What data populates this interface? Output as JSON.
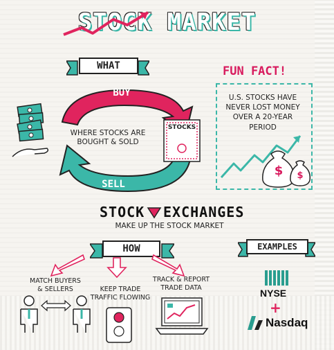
{
  "title": "STOCK MARKET",
  "what": {
    "banner": "WHAT",
    "buy": "BUY",
    "sell": "SELL",
    "description_line1": "WHERE STOCKS ARE",
    "description_line2": "BOUGHT & SOLD",
    "certificate_label": "STOCKS"
  },
  "fun_fact": {
    "title": "FUN FACT!",
    "line1": "U.S. STOCKS HAVE",
    "line2": "NEVER LOST MONEY",
    "line3": "OVER A 20-YEAR",
    "line4": "PERIOD",
    "money_bag_symbol": "$"
  },
  "exchanges": {
    "title_left": "STOCK",
    "title_right": "EXCHANGES",
    "subtitle": "MAKE UP THE STOCK MARKET"
  },
  "how": {
    "banner": "HOW",
    "items": [
      {
        "line1": "MATCH BUYERS",
        "line2": "& SELLERS"
      },
      {
        "line1": "KEEP TRADE",
        "line2": "TRAFFIC FLOWING"
      },
      {
        "line1": "TRACK & REPORT",
        "line2": "TRADE DATA"
      }
    ]
  },
  "examples": {
    "banner": "EXAMPLES",
    "nyse": "NYSE",
    "plus": "+",
    "nasdaq": "Nasdaq"
  },
  "colors": {
    "accent_pink": "#e0245e",
    "accent_teal": "#3bb7a8",
    "ink": "#222222"
  },
  "icons": [
    "money-stack-icon",
    "hand-icon",
    "stock-certificate-icon",
    "money-bag-icon",
    "growth-chart-icon",
    "businessman-icon",
    "traffic-light-icon",
    "laptop-chart-icon",
    "nyse-columns-icon",
    "nasdaq-logo-icon"
  ]
}
